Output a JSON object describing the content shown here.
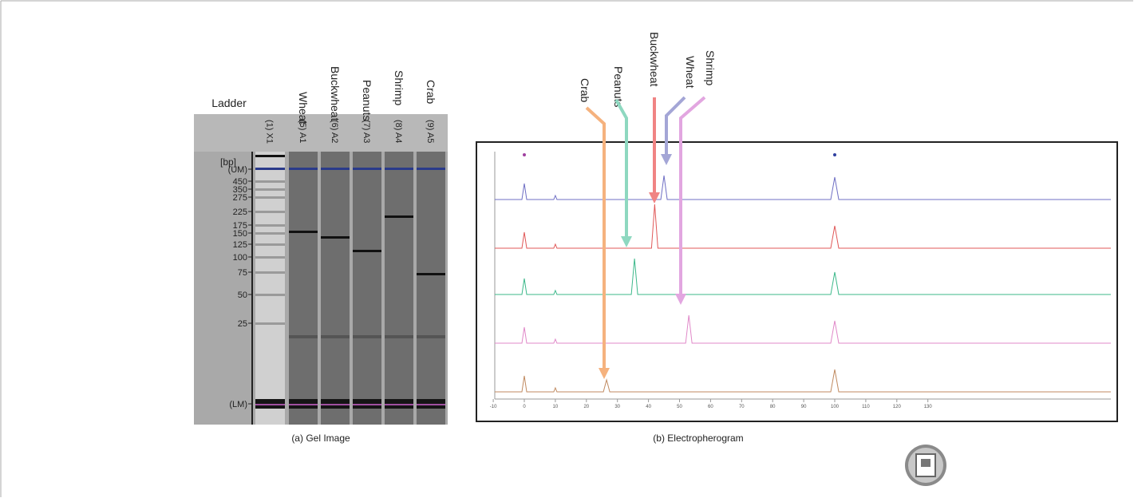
{
  "gel": {
    "unit": "[bp]",
    "lanes": [
      {
        "name": "Ladder",
        "id": "(1) X1"
      },
      {
        "name": "Wheat",
        "id": "(5) A1"
      },
      {
        "name": "Buckwheat",
        "id": "(6) A2"
      },
      {
        "name": "Peanuts",
        "id": "(7) A3"
      },
      {
        "name": "Shrimp",
        "id": "(8) A4"
      },
      {
        "name": "Crab",
        "id": "(9) A5"
      }
    ],
    "size_labels": [
      "(UM)",
      "450",
      "350",
      "275",
      "225",
      "175",
      "150",
      "125",
      "100",
      "75",
      "50",
      "25",
      "(LM)"
    ],
    "caption": "(a) Gel Image"
  },
  "electropherogram": {
    "labels": [
      {
        "name": "Crab",
        "color": "#f5b27e"
      },
      {
        "name": "Peanuts",
        "color": "#8ed8c0"
      },
      {
        "name": "Buckwheat",
        "color": "#f08484"
      },
      {
        "name": "Wheat",
        "color": "#a4a6d6"
      },
      {
        "name": "Shrimp",
        "color": "#e2a6e0"
      }
    ],
    "x_ticks": [
      "-10",
      "0",
      "10",
      "20",
      "30",
      "40",
      "50",
      "60",
      "70",
      "80",
      "90",
      "100",
      "110",
      "120",
      "130"
    ],
    "caption": "(b) Electropherogram"
  }
}
